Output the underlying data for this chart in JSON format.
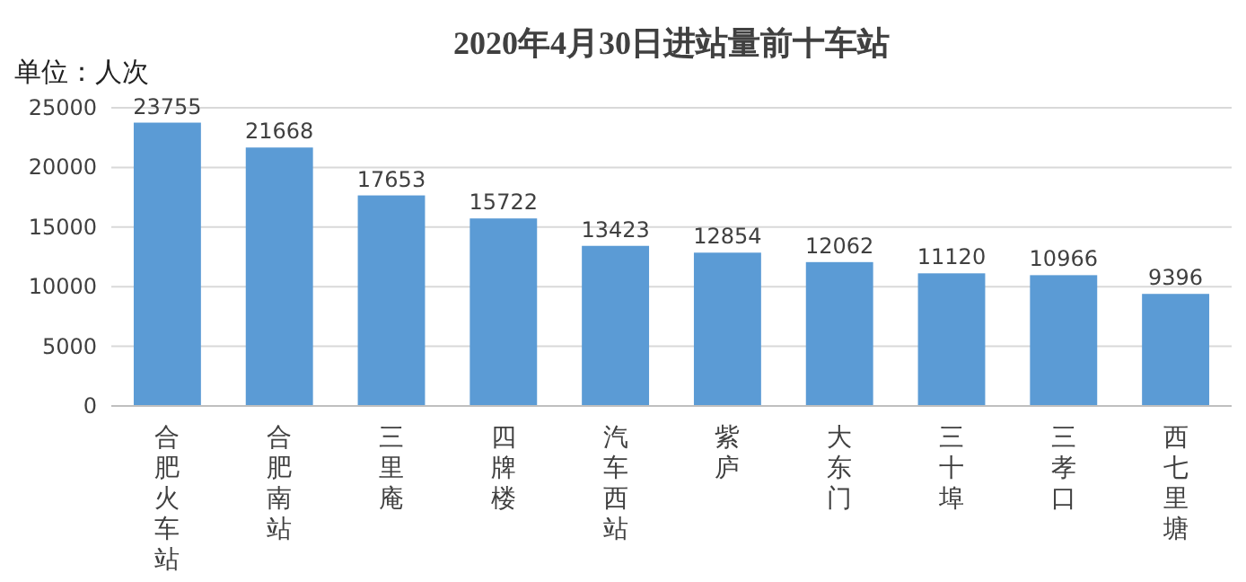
{
  "chart_data": {
    "type": "bar",
    "title": "2020年4月30日进站量前十车站",
    "ylabel": "单位：人次",
    "categories": [
      "合肥火车站",
      "合肥南站",
      "三里庵",
      "四牌楼",
      "汽车西站",
      "紫庐",
      "大东门",
      "三十埠",
      "三孝口",
      "西七里塘"
    ],
    "values": [
      23755,
      21668,
      17653,
      15722,
      13423,
      12854,
      12062,
      11120,
      10966,
      9396
    ],
    "color": "#5b9bd5",
    "ylim": [
      0,
      25000
    ],
    "yticks": [
      0,
      5000,
      10000,
      15000,
      20000,
      25000
    ],
    "grid": "y",
    "data_labels": true
  }
}
